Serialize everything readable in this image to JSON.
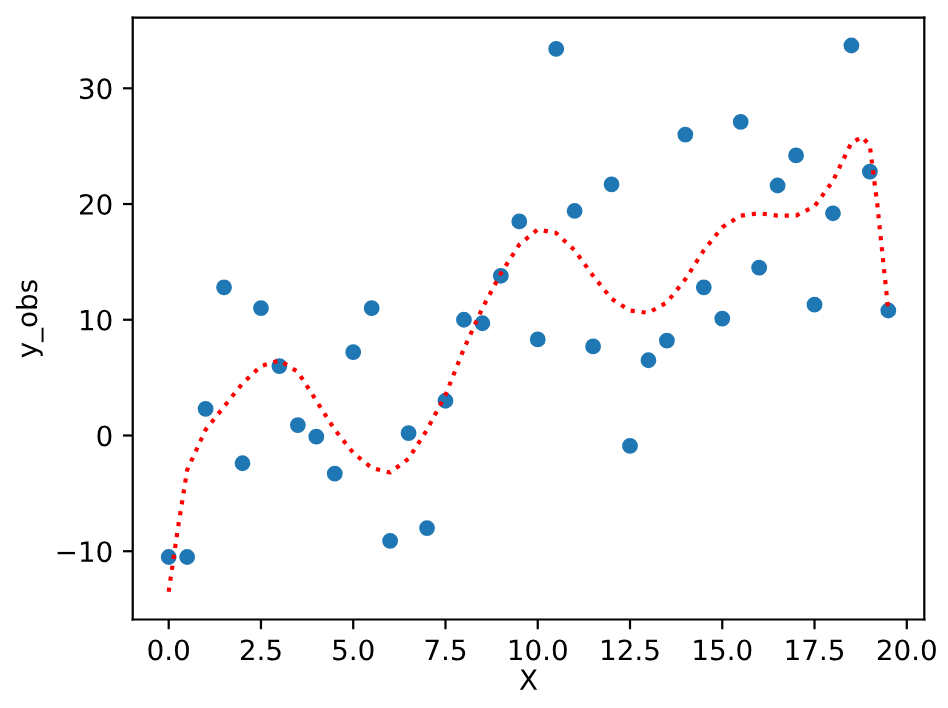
{
  "chart_data": {
    "type": "scatter",
    "xlabel": "X",
    "ylabel": "y_obs",
    "xlim": [
      -0.975,
      20.475
    ],
    "ylim": [
      -15.9,
      36.1
    ],
    "xticks": [
      {
        "value": 0,
        "label": "0.0"
      },
      {
        "value": 2.5,
        "label": "2.5"
      },
      {
        "value": 5,
        "label": "5.0"
      },
      {
        "value": 7.5,
        "label": "7.5"
      },
      {
        "value": 10,
        "label": "10.0"
      },
      {
        "value": 12.5,
        "label": "12.5"
      },
      {
        "value": 15,
        "label": "15.0"
      },
      {
        "value": 17.5,
        "label": "17.5"
      },
      {
        "value": 20,
        "label": "20.0"
      }
    ],
    "yticks": [
      {
        "value": -10,
        "label": "−10"
      },
      0,
      10,
      20,
      30
    ],
    "grid": false,
    "legend": false,
    "series": [
      {
        "color": "#1f77b4",
        "marker": "circle",
        "x": [
          0,
          0.5,
          1,
          1.5,
          2,
          2.5,
          3,
          3.5,
          4,
          4.5,
          5,
          5.5,
          6,
          6.5,
          7,
          7.5,
          8,
          8.5,
          9,
          9.5,
          10,
          10.5,
          11,
          11.5,
          12,
          12.5,
          13,
          13.5,
          14,
          14.5,
          15,
          15.5,
          16,
          16.5,
          17,
          17.5,
          18,
          18.5,
          19,
          19.5
        ],
        "values": [
          -10.5,
          -10.5,
          2.3,
          12.8,
          -2.4,
          11,
          6,
          0.9,
          -0.1,
          -3.3,
          7.2,
          11,
          -9.1,
          0.2,
          -8,
          3,
          10,
          9.7,
          13.8,
          18.5,
          8.3,
          33.4,
          19.4,
          7.7,
          21.7,
          -0.9,
          6.5,
          8.2,
          26,
          12.8,
          10.1,
          27.1,
          14.5,
          21.6,
          24.2,
          11.3,
          19.2,
          33.7,
          22.8,
          10.8
        ]
      },
      {
        "type": "line",
        "color": "#ff0000",
        "line_style": "dotted",
        "marker": "none",
        "x": [
          0,
          0.25,
          0.5,
          1,
          1.5,
          2,
          2.5,
          3,
          3.5,
          4,
          4.5,
          5,
          5.5,
          6,
          6.5,
          7,
          7.5,
          8,
          8.5,
          9,
          9.5,
          10,
          10.5,
          11,
          11.5,
          12,
          12.5,
          13,
          13.5,
          14,
          14.5,
          15,
          15.5,
          16,
          16.5,
          17,
          17.5,
          18,
          18.5,
          18.8,
          19,
          19.2,
          19.5
        ],
        "values": [
          -13.5,
          -8,
          -3,
          0.5,
          2.5,
          4.5,
          6,
          6.5,
          5.5,
          3,
          0.5,
          -1.5,
          -2.8,
          -3.2,
          -2,
          0.5,
          3.5,
          7.5,
          11,
          14,
          16.5,
          17.8,
          17.5,
          16,
          13.8,
          11.8,
          10.8,
          10.6,
          11.5,
          13.5,
          16,
          18,
          19,
          19.2,
          19,
          19,
          19.8,
          22,
          25.3,
          25.8,
          25,
          20,
          10.8
        ]
      }
    ]
  }
}
